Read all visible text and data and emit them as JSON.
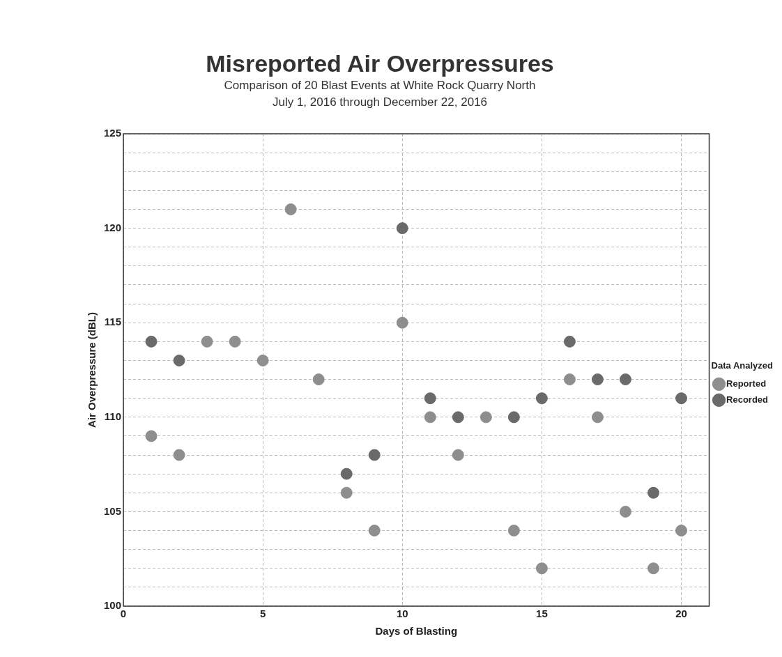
{
  "chart_data": {
    "type": "scatter",
    "title": "Misreported Air Overpressures",
    "subtitle": "Comparison of 20 Blast Events at White Rock Quarry North\nJuly 1, 2016 through December 22, 2016",
    "xlabel": "Days of Blasting",
    "ylabel": "Air Overpressure (dBL)",
    "legend_title": "Data Analyzed",
    "x": [
      1,
      2,
      3,
      4,
      5,
      6,
      7,
      8,
      9,
      10,
      11,
      12,
      13,
      14,
      15,
      16,
      17,
      18,
      19,
      20
    ],
    "series": [
      {
        "name": "Reported",
        "color": "#8e8e8e",
        "values": [
          109,
          108,
          114,
          114,
          113,
          121,
          112,
          106,
          104,
          115,
          110,
          108,
          110,
          104,
          102,
          112,
          110,
          105,
          102,
          104
        ]
      },
      {
        "name": "Recorded",
        "color": "#6a6a6a",
        "values": [
          114,
          113,
          null,
          null,
          null,
          null,
          null,
          107,
          108,
          120,
          111,
          110,
          null,
          110,
          111,
          114,
          112,
          112,
          106,
          111
        ]
      }
    ],
    "xlim": [
      0,
      21
    ],
    "xticks": [
      0,
      5,
      10,
      15,
      20
    ],
    "ylim": [
      100,
      125
    ],
    "yticks": [
      100,
      {
        "value": 101,
        "label": null
      },
      {
        "value": 102,
        "label": null
      },
      {
        "value": 103,
        "label": null
      },
      {
        "value": 104,
        "label": null
      },
      105,
      {
        "value": 106,
        "label": null
      },
      {
        "value": 107,
        "label": null
      },
      {
        "value": 108,
        "label": null
      },
      {
        "value": 109,
        "label": null
      },
      110,
      {
        "value": 111,
        "label": null
      },
      {
        "value": 112,
        "label": null
      },
      {
        "value": 113,
        "label": null
      },
      {
        "value": 114,
        "label": null
      },
      115,
      {
        "value": 116,
        "label": null
      },
      {
        "value": 117,
        "label": null
      },
      {
        "value": 118,
        "label": null
      },
      {
        "value": 119,
        "label": null
      },
      120,
      {
        "value": 121,
        "label": null
      },
      {
        "value": 122,
        "label": null
      },
      {
        "value": 123,
        "label": null
      },
      {
        "value": 124,
        "label": null
      },
      125
    ],
    "grid": true,
    "legend": "right",
    "marker": "circle"
  }
}
